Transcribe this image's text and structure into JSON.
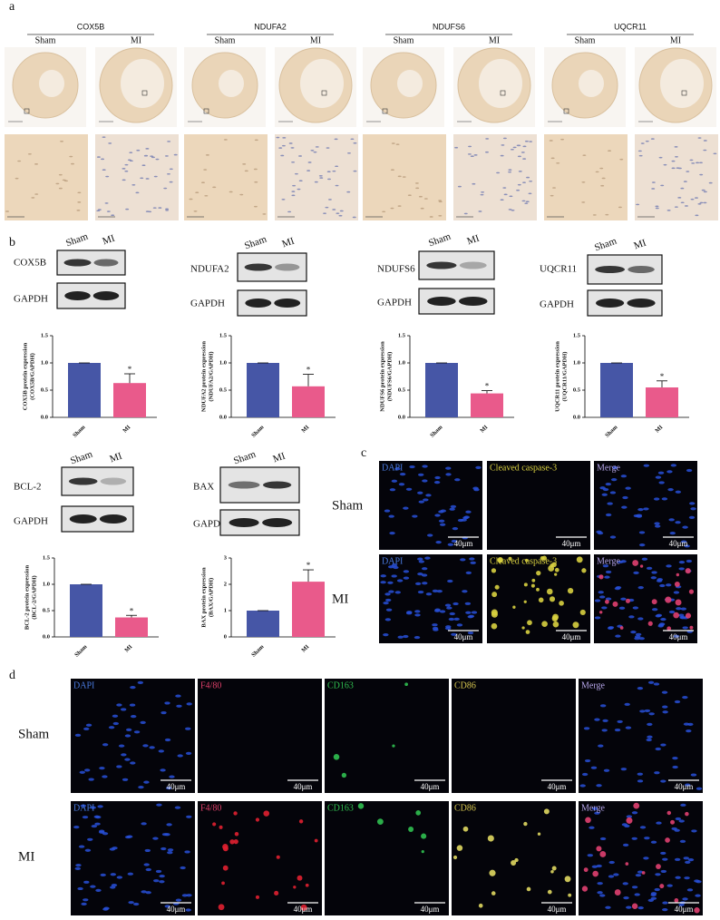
{
  "panel_labels": [
    "a",
    "b",
    "c",
    "d"
  ],
  "panel_a": {
    "markers": [
      {
        "name": "COX5B",
        "groups": [
          "Sham",
          "MI"
        ]
      },
      {
        "name": "NDUFA2",
        "groups": [
          "Sham",
          "MI"
        ]
      },
      {
        "name": "NDUFS6",
        "groups": [
          "Sham",
          "MI"
        ]
      },
      {
        "name": "UQCR11",
        "groups": [
          "Sham",
          "MI"
        ]
      }
    ]
  },
  "panel_b": {
    "blots": [
      {
        "name": "COX5B",
        "loading": "GAPDH",
        "lanes": [
          "Sham",
          "MI"
        ]
      },
      {
        "name": "NDUFA2",
        "loading": "GAPDH",
        "lanes": [
          "Sham",
          "MI"
        ]
      },
      {
        "name": "NDUFS6",
        "loading": "GAPDH",
        "lanes": [
          "Sham",
          "MI"
        ]
      },
      {
        "name": "UQCR11",
        "loading": "GAPDH",
        "lanes": [
          "Sham",
          "MI"
        ]
      },
      {
        "name": "BCL-2",
        "loading": "GAPDH",
        "lanes": [
          "Sham",
          "MI"
        ]
      },
      {
        "name": "BAX",
        "loading": "GAPDH",
        "lanes": [
          "Sham",
          "MI"
        ]
      }
    ]
  },
  "chart_data": [
    {
      "type": "bar",
      "ylabel": [
        "COX5B protein expression",
        "(COX5B/GAPDH)"
      ],
      "categories": [
        "Sham",
        "MI"
      ],
      "values": [
        1,
        0.63
      ],
      "errors": [
        0,
        0.17
      ],
      "colors": [
        "#4656a6",
        "#e95a8b"
      ],
      "annotation": "*",
      "ylim": [
        0,
        1.5
      ],
      "yticks": [
        {
          "value": 0,
          "label": "0.0"
        },
        0.5,
        {
          "value": 1,
          "label": "1.0"
        },
        1.5
      ]
    },
    {
      "type": "bar",
      "ylabel": [
        "NDUFA2 protein expression",
        "(NDUFA2/GAPDH)"
      ],
      "categories": [
        "Sham",
        "MI"
      ],
      "values": [
        1,
        0.57
      ],
      "errors": [
        0,
        0.22
      ],
      "colors": [
        "#4656a6",
        "#e95a8b"
      ],
      "annotation": "*",
      "ylim": [
        0,
        1.5
      ],
      "yticks": [
        {
          "value": 0,
          "label": "0.0"
        },
        0.5,
        {
          "value": 1,
          "label": "1.0"
        },
        1.5
      ]
    },
    {
      "type": "bar",
      "ylabel": [
        "NDUFS6 protein expression",
        "(NDUFS6/GAPDH)"
      ],
      "categories": [
        "Sham",
        "MI"
      ],
      "values": [
        1,
        0.44
      ],
      "errors": [
        0,
        0.05
      ],
      "colors": [
        "#4656a6",
        "#e95a8b"
      ],
      "annotation": "*",
      "ylim": [
        0,
        1.5
      ],
      "yticks": [
        {
          "value": 0,
          "label": "0.0"
        },
        0.5,
        {
          "value": 1,
          "label": "1.0"
        },
        1.5
      ]
    },
    {
      "type": "bar",
      "ylabel": [
        "UQCR11 protein expression",
        "(UQCR11/GAPDH)"
      ],
      "categories": [
        "Sham",
        "MI"
      ],
      "values": [
        1,
        0.55
      ],
      "errors": [
        0,
        0.12
      ],
      "colors": [
        "#4656a6",
        "#e95a8b"
      ],
      "annotation": "*",
      "ylim": [
        0,
        1.5
      ],
      "yticks": [
        {
          "value": 0,
          "label": "0.0"
        },
        0.5,
        {
          "value": 1,
          "label": "1.0"
        },
        1.5
      ]
    },
    {
      "type": "bar",
      "ylabel": [
        "BCL-2 protein expression",
        "(BCL-2/GAPDH)"
      ],
      "categories": [
        "Sham",
        "MI"
      ],
      "values": [
        1,
        0.37
      ],
      "errors": [
        0,
        0.04
      ],
      "colors": [
        "#4656a6",
        "#e95a8b"
      ],
      "annotation": "*",
      "ylim": [
        0,
        1.5
      ],
      "yticks": [
        {
          "value": 0,
          "label": "0.0"
        },
        0.5,
        {
          "value": 1,
          "label": "1.0"
        },
        1.5
      ]
    },
    {
      "type": "bar",
      "ylabel": [
        "BAX protein expression",
        "(BAX/GAPDH)"
      ],
      "categories": [
        "Sham",
        "MI"
      ],
      "values": [
        1,
        2.1
      ],
      "errors": [
        0,
        0.45
      ],
      "colors": [
        "#4656a6",
        "#e95a8b"
      ],
      "annotation": "*",
      "ylim": [
        0,
        3
      ],
      "yticks": [
        0,
        1,
        2,
        3
      ]
    }
  ],
  "panel_c": {
    "rows": [
      "Sham",
      "MI"
    ],
    "channels": [
      "DAPI",
      "Cleaved caspase-3",
      "Merge"
    ],
    "scale_bar": "40μm"
  },
  "panel_d": {
    "rows": [
      "Sham",
      "MI"
    ],
    "channels": [
      "DAPI",
      "F4/80",
      "CD163",
      "CD86",
      "Merge"
    ],
    "scale_bar": "40μm"
  }
}
